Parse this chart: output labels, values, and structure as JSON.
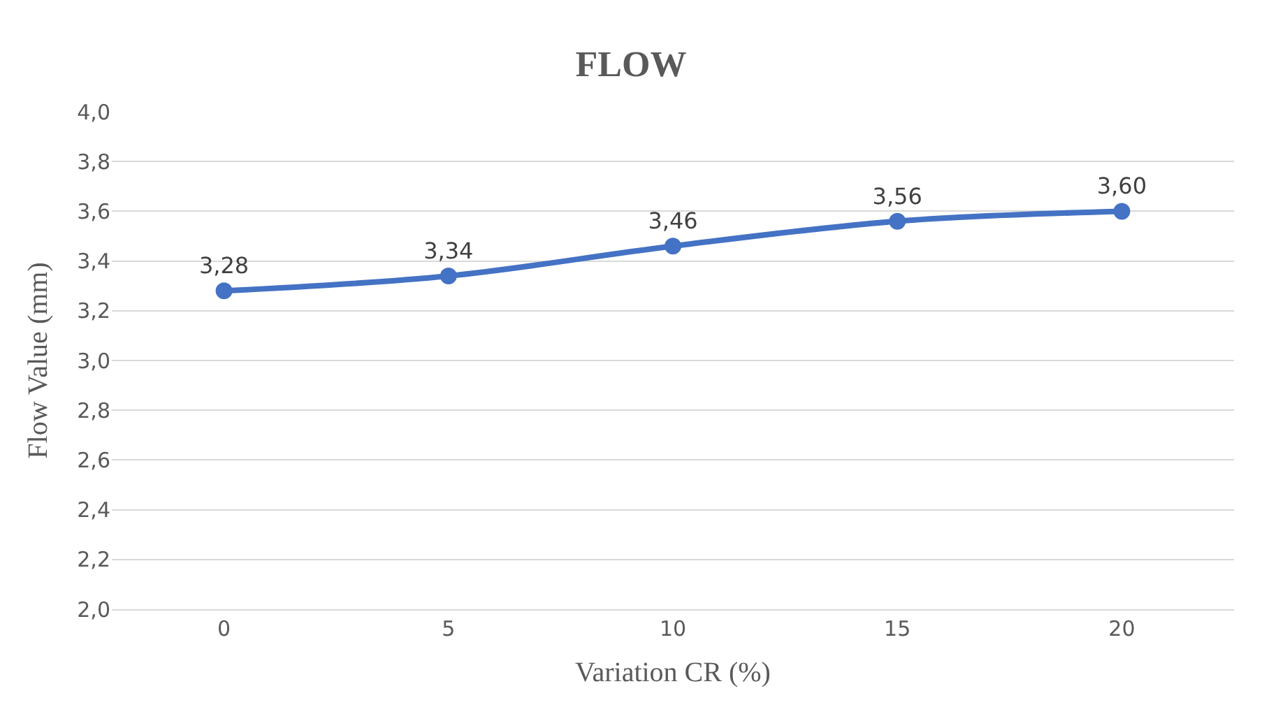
{
  "chart_data": {
    "type": "line",
    "title": "FLOW",
    "xlabel": "Variation CR (%)",
    "ylabel": "Flow Value (mm)",
    "categories": [
      "0",
      "5",
      "10",
      "15",
      "20"
    ],
    "series": [
      {
        "color": "#4472c4",
        "values": [
          3.28,
          3.34,
          3.46,
          3.56,
          3.6
        ],
        "value_labels": [
          "3,28",
          "3,34",
          "3,46",
          "3,56",
          "3,60"
        ]
      }
    ],
    "ylim": [
      2.0,
      4.0
    ],
    "yticks": [
      {
        "value": 2.0,
        "label": "2,0"
      },
      {
        "value": 2.2,
        "label": "2,2"
      },
      {
        "value": 2.4,
        "label": "2,4"
      },
      {
        "value": 2.6,
        "label": "2,6"
      },
      {
        "value": 2.8,
        "label": "2,8"
      },
      {
        "value": 3.0,
        "label": "3,0"
      },
      {
        "value": 3.2,
        "label": "3,2"
      },
      {
        "value": 3.4,
        "label": "3,4"
      },
      {
        "value": 3.6,
        "label": "3,6"
      },
      {
        "value": 3.8,
        "label": "3,8"
      },
      {
        "value": 4.0,
        "label": "4,0"
      }
    ],
    "grid": "y",
    "marker": "circle",
    "line_style": "solid",
    "legend": false
  }
}
